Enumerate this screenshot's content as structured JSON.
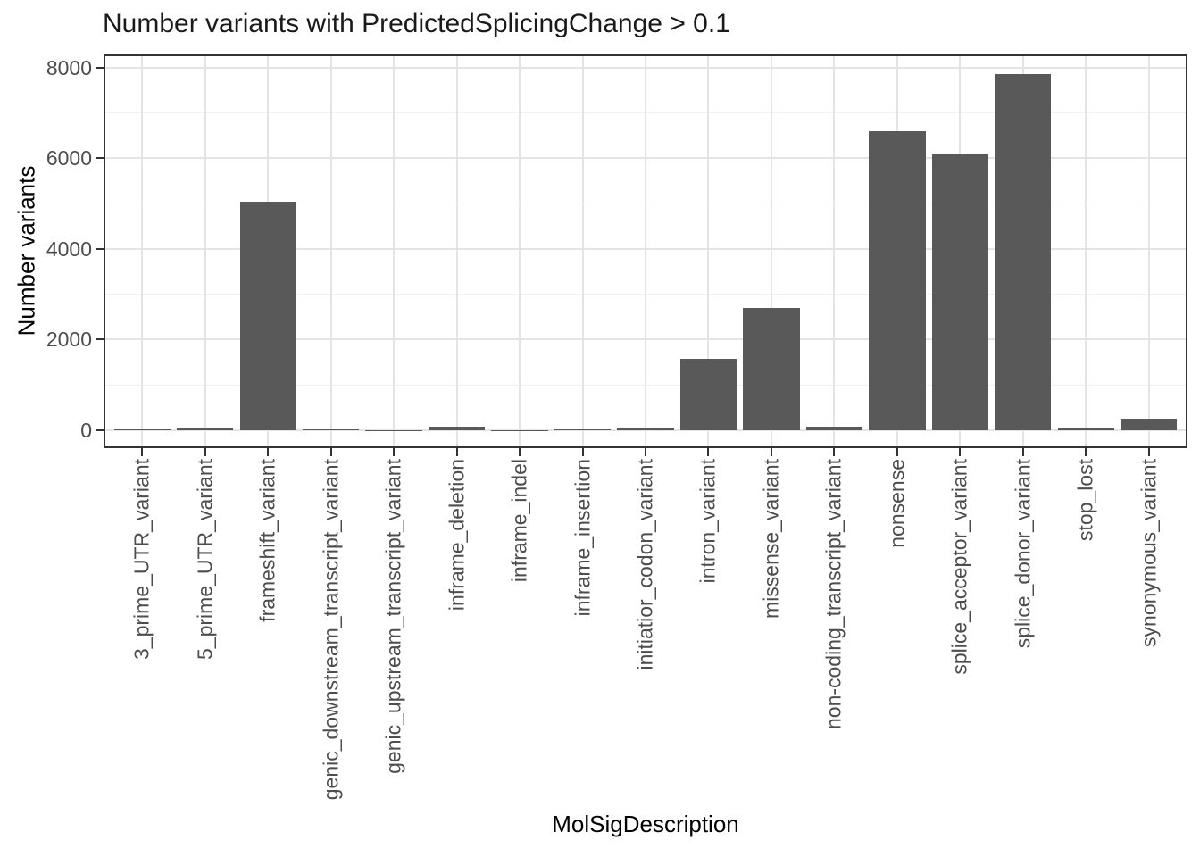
{
  "chart_data": {
    "type": "bar",
    "title": "Number variants with PredictedSplicingChange > 0.1",
    "xlabel": "MolSigDescription",
    "ylabel": "Number variants",
    "categories": [
      "3_prime_UTR_variant",
      "5_prime_UTR_variant",
      "frameshift_variant",
      "genic_downstream_transcript_variant",
      "genic_upstream_transcript_variant",
      "inframe_deletion",
      "inframe_indel",
      "inframe_insertion",
      "initiatior_codon_variant",
      "intron_variant",
      "missense_variant",
      "non-coding_transcript_variant",
      "nonsense",
      "splice_acceptor_variant",
      "splice_donor_variant",
      "stop_lost",
      "synonymous_variant"
    ],
    "values": [
      25,
      45,
      5050,
      25,
      5,
      85,
      5,
      20,
      60,
      1580,
      2690,
      70,
      6590,
      6090,
      7850,
      30,
      250
    ],
    "yticks": [
      0,
      2000,
      4000,
      6000,
      8000
    ],
    "yticks_minor": [
      1000,
      3000,
      5000,
      7000
    ],
    "ylim": [
      0,
      8250
    ],
    "grid": "major-and-minor",
    "legend": "none",
    "colors": {
      "bar_fill": "#595959",
      "panel_border": "#333333",
      "grid_major": "#e4e4e4",
      "grid_minor": "#f0f0f0",
      "axis_text": "#4d4d4d",
      "title_text": "#1a1a1a",
      "tick_mark": "#333333",
      "background": "#ffffff"
    }
  }
}
